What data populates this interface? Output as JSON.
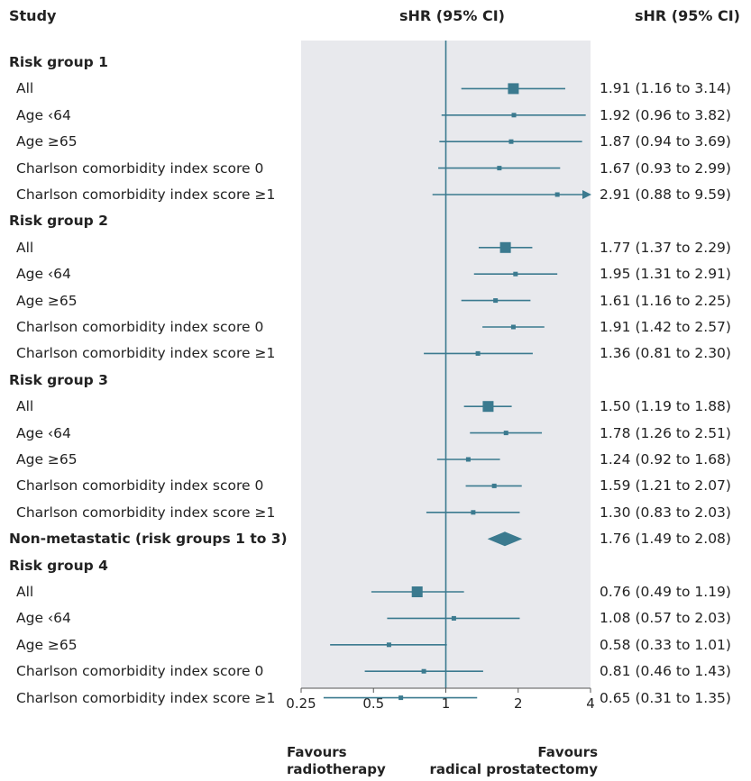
{
  "headers": {
    "study": "Study",
    "shr_plot": "sHR (95% CI)",
    "shr_values": "sHR (95% CI)"
  },
  "footer": {
    "left_line1": "Favours",
    "left_line2": "radiotherapy",
    "right_line1": "Favours",
    "right_line2": "radical prostatectomy"
  },
  "colors": {
    "marker": "#3b7a8f",
    "panel": "#e8e9ed",
    "text": "#222222"
  },
  "chart_data": {
    "type": "forest",
    "xscale": "log",
    "xlim": [
      0.25,
      4
    ],
    "xticks": [
      "0.25",
      "0.5",
      "1",
      "2",
      "4"
    ],
    "reference_line": 1,
    "rows": [
      {
        "label": "Risk group 1",
        "kind": "group"
      },
      {
        "label": "All",
        "kind": "all",
        "est": 1.91,
        "lo": 1.16,
        "hi": 3.14,
        "text": "1.91 (1.16 to 3.14)"
      },
      {
        "label": "Age ‹64",
        "kind": "sub",
        "est": 1.92,
        "lo": 0.96,
        "hi": 3.82,
        "text": "1.92 (0.96 to 3.82)"
      },
      {
        "label": "Age ≥65",
        "kind": "sub",
        "est": 1.87,
        "lo": 0.94,
        "hi": 3.69,
        "text": "1.87 (0.94 to 3.69)"
      },
      {
        "label": "Charlson comorbidity index score 0",
        "kind": "sub",
        "est": 1.67,
        "lo": 0.93,
        "hi": 2.99,
        "text": "1.67 (0.93 to 2.99)"
      },
      {
        "label": "Charlson comorbidity index score ≥1",
        "kind": "sub",
        "est": 2.91,
        "lo": 0.88,
        "hi": 9.59,
        "text": "2.91 (0.88 to 9.59)"
      },
      {
        "label": "Risk group 2",
        "kind": "group"
      },
      {
        "label": "All",
        "kind": "all",
        "est": 1.77,
        "lo": 1.37,
        "hi": 2.29,
        "text": "1.77 (1.37 to 2.29)"
      },
      {
        "label": "Age ‹64",
        "kind": "sub",
        "est": 1.95,
        "lo": 1.31,
        "hi": 2.91,
        "text": "1.95 (1.31 to 2.91)"
      },
      {
        "label": "Age ≥65",
        "kind": "sub",
        "est": 1.61,
        "lo": 1.16,
        "hi": 2.25,
        "text": "1.61 (1.16 to 2.25)"
      },
      {
        "label": "Charlson comorbidity index score 0",
        "kind": "sub",
        "est": 1.91,
        "lo": 1.42,
        "hi": 2.57,
        "text": "1.91 (1.42 to 2.57)"
      },
      {
        "label": "Charlson comorbidity index score ≥1",
        "kind": "sub",
        "est": 1.36,
        "lo": 0.81,
        "hi": 2.3,
        "text": "1.36 (0.81 to 2.30)"
      },
      {
        "label": "Risk group 3",
        "kind": "group"
      },
      {
        "label": "All",
        "kind": "all",
        "est": 1.5,
        "lo": 1.19,
        "hi": 1.88,
        "text": "1.50 (1.19 to 1.88)"
      },
      {
        "label": "Age ‹64",
        "kind": "sub",
        "est": 1.78,
        "lo": 1.26,
        "hi": 2.51,
        "text": "1.78 (1.26 to 2.51)"
      },
      {
        "label": "Age ≥65",
        "kind": "sub",
        "est": 1.24,
        "lo": 0.92,
        "hi": 1.68,
        "text": "1.24 (0.92 to 1.68)"
      },
      {
        "label": "Charlson comorbidity index score 0",
        "kind": "sub",
        "est": 1.59,
        "lo": 1.21,
        "hi": 2.07,
        "text": "1.59 (1.21 to 2.07)"
      },
      {
        "label": "Charlson comorbidity index score ≥1",
        "kind": "sub",
        "est": 1.3,
        "lo": 0.83,
        "hi": 2.03,
        "text": "1.30 (0.83 to 2.03)"
      },
      {
        "label": "Non-metastatic (risk groups 1 to 3)",
        "kind": "pooled",
        "est": 1.76,
        "lo": 1.49,
        "hi": 2.08,
        "text": "1.76 (1.49 to 2.08)"
      },
      {
        "label": "Risk group 4",
        "kind": "group"
      },
      {
        "label": "All",
        "kind": "all",
        "est": 0.76,
        "lo": 0.49,
        "hi": 1.19,
        "text": "0.76 (0.49 to 1.19)"
      },
      {
        "label": "Age ‹64",
        "kind": "sub",
        "est": 1.08,
        "lo": 0.57,
        "hi": 2.03,
        "text": "1.08 (0.57 to 2.03)"
      },
      {
        "label": "Age ≥65",
        "kind": "sub",
        "est": 0.58,
        "lo": 0.33,
        "hi": 1.01,
        "text": "0.58 (0.33 to 1.01)"
      },
      {
        "label": "Charlson comorbidity index score 0",
        "kind": "sub",
        "est": 0.81,
        "lo": 0.46,
        "hi": 1.43,
        "text": "0.81 (0.46 to 1.43)"
      },
      {
        "label": "Charlson comorbidity index score ≥1",
        "kind": "sub",
        "est": 0.65,
        "lo": 0.31,
        "hi": 1.35,
        "text": "0.65 (0.31 to 1.35)"
      }
    ]
  }
}
